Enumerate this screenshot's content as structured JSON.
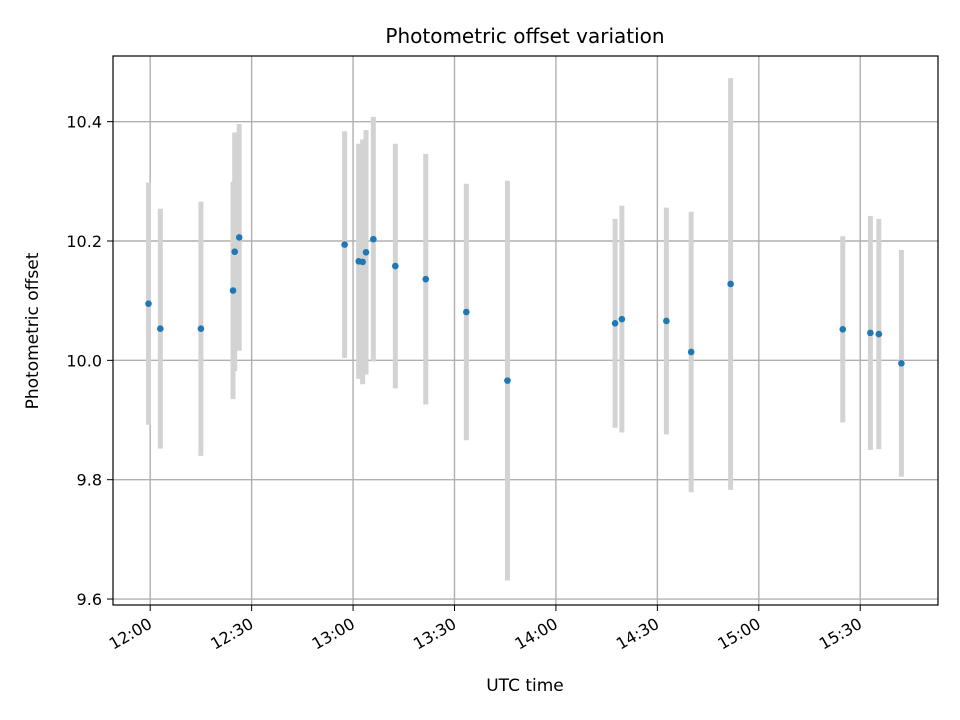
{
  "chart_data": {
    "type": "scatter",
    "title": "Photometric offset variation",
    "xlabel": "UTC time",
    "ylabel": "Photometric offset",
    "xlim": [
      "11:49",
      "15:53"
    ],
    "ylim": [
      9.59,
      10.51
    ],
    "grid": true,
    "xticks": [
      "12:00",
      "12:30",
      "13:00",
      "13:30",
      "14:00",
      "14:30",
      "15:00",
      "15:30"
    ],
    "yticks": [
      "9.6",
      "9.8",
      "10.0",
      "10.2",
      "10.4"
    ],
    "colors": {
      "point": "#1f77b4",
      "errorbar": "#d3d3d3",
      "grid": "#b0b0b0"
    },
    "points": [
      {
        "x": "11:59:30",
        "y": 10.095,
        "err": 0.203
      },
      {
        "x": "12:03:00",
        "y": 10.053,
        "err": 0.201
      },
      {
        "x": "12:15:00",
        "y": 10.053,
        "err": 0.213
      },
      {
        "x": "12:24:30",
        "y": 10.117,
        "err": 0.182
      },
      {
        "x": "12:25:00",
        "y": 10.182,
        "err": 0.2
      },
      {
        "x": "12:26:20",
        "y": 10.206,
        "err": 0.19
      },
      {
        "x": "12:57:30",
        "y": 10.194,
        "err": 0.19
      },
      {
        "x": "13:01:40",
        "y": 10.166,
        "err": 0.197
      },
      {
        "x": "13:02:50",
        "y": 10.165,
        "err": 0.205
      },
      {
        "x": "13:03:50",
        "y": 10.181,
        "err": 0.205
      },
      {
        "x": "13:06:00",
        "y": 10.203,
        "err": 0.205
      },
      {
        "x": "13:12:30",
        "y": 10.158,
        "err": 0.205
      },
      {
        "x": "13:21:30",
        "y": 10.136,
        "err": 0.21
      },
      {
        "x": "13:33:30",
        "y": 10.081,
        "err": 0.215
      },
      {
        "x": "13:45:40",
        "y": 9.966,
        "err": 0.335
      },
      {
        "x": "14:17:30",
        "y": 10.062,
        "err": 0.175
      },
      {
        "x": "14:19:30",
        "y": 10.069,
        "err": 0.19
      },
      {
        "x": "14:32:40",
        "y": 10.066,
        "err": 0.19
      },
      {
        "x": "14:40:00",
        "y": 10.014,
        "err": 0.235
      },
      {
        "x": "14:51:40",
        "y": 10.128,
        "err": 0.345
      },
      {
        "x": "15:24:50",
        "y": 10.052,
        "err": 0.156
      },
      {
        "x": "15:33:00",
        "y": 10.046,
        "err": 0.196
      },
      {
        "x": "15:35:30",
        "y": 10.044,
        "err": 0.193
      },
      {
        "x": "15:42:10",
        "y": 9.995,
        "err": 0.19
      }
    ]
  }
}
